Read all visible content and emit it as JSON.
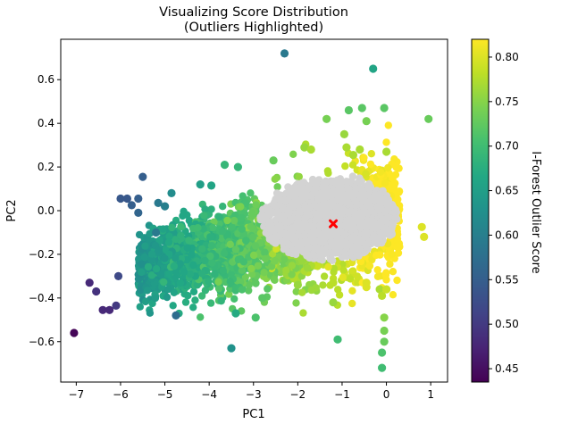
{
  "chart_data": {
    "type": "scatter",
    "title": "Visualizing Score Distribution",
    "subtitle": "(Outliers Highlighted)",
    "xlabel": "PC1",
    "ylabel": "PC2",
    "xlim": [
      -7.35,
      1.38
    ],
    "ylim": [
      -0.785,
      0.785
    ],
    "xticks": [
      -7,
      -6,
      -5,
      -4,
      -3,
      -2,
      -1,
      0,
      1
    ],
    "yticks": [
      -0.6,
      -0.4,
      -0.2,
      0.0,
      0.2,
      0.4,
      0.6
    ],
    "ytick_labels": [
      "−0.6",
      "−0.4",
      "−0.2",
      "0.0",
      "0.2",
      "0.4",
      "0.6"
    ],
    "xtick_labels": [
      "−7",
      "−6",
      "−5",
      "−4",
      "−3",
      "−2",
      "−1",
      "0",
      "1"
    ],
    "grid": false,
    "colorbar": {
      "label": "I-Forest Outlier Score",
      "range": [
        0.435,
        0.82
      ],
      "ticks": [
        0.45,
        0.5,
        0.55,
        0.6,
        0.65,
        0.7,
        0.75,
        0.8
      ],
      "tick_labels": [
        "0.45",
        "0.50",
        "0.55",
        "0.60",
        "0.65",
        "0.70",
        "0.75",
        "0.80"
      ],
      "colormap": "viridis"
    },
    "inlier_color": "#d3d3d3",
    "center_marker": {
      "x": -1.2,
      "y": -0.06,
      "color": "#ff0000",
      "shape": "x"
    },
    "highlighted_points": [
      {
        "x": -7.05,
        "y": -0.56,
        "score": 0.44
      },
      {
        "x": -6.7,
        "y": -0.33,
        "score": 0.48
      },
      {
        "x": -6.55,
        "y": -0.37,
        "score": 0.49
      },
      {
        "x": -6.4,
        "y": -0.455,
        "score": 0.48
      },
      {
        "x": -6.25,
        "y": -0.455,
        "score": 0.48
      },
      {
        "x": -6.1,
        "y": -0.435,
        "score": 0.5
      },
      {
        "x": -6.05,
        "y": -0.3,
        "score": 0.52
      },
      {
        "x": -6.0,
        "y": 0.055,
        "score": 0.54
      },
      {
        "x": -5.85,
        "y": 0.055,
        "score": 0.54
      },
      {
        "x": -5.75,
        "y": 0.025,
        "score": 0.55
      },
      {
        "x": -5.6,
        "y": 0.055,
        "score": 0.55
      },
      {
        "x": -5.6,
        "y": -0.01,
        "score": 0.56
      },
      {
        "x": -5.5,
        "y": 0.155,
        "score": 0.55
      },
      {
        "x": -5.15,
        "y": 0.035,
        "score": 0.59
      },
      {
        "x": -5.2,
        "y": -0.1,
        "score": 0.59
      },
      {
        "x": -5.0,
        "y": 0.02,
        "score": 0.6
      },
      {
        "x": -4.85,
        "y": 0.08,
        "score": 0.62
      },
      {
        "x": -4.75,
        "y": -0.48,
        "score": 0.57
      },
      {
        "x": -4.2,
        "y": 0.12,
        "score": 0.65
      },
      {
        "x": -3.95,
        "y": 0.115,
        "score": 0.66
      },
      {
        "x": -3.5,
        "y": -0.63,
        "score": 0.63
      },
      {
        "x": -3.65,
        "y": 0.21,
        "score": 0.69
      },
      {
        "x": -3.35,
        "y": 0.2,
        "score": 0.69
      },
      {
        "x": -3.4,
        "y": -0.47,
        "score": 0.67
      },
      {
        "x": -2.95,
        "y": -0.49,
        "score": 0.71
      },
      {
        "x": -2.8,
        "y": -0.4,
        "score": 0.72
      },
      {
        "x": -2.55,
        "y": 0.23,
        "score": 0.73
      },
      {
        "x": -2.3,
        "y": 0.72,
        "score": 0.59
      },
      {
        "x": -2.0,
        "y": -0.34,
        "score": 0.76
      },
      {
        "x": -1.85,
        "y": 0.29,
        "score": 0.76
      },
      {
        "x": -1.7,
        "y": 0.28,
        "score": 0.77
      },
      {
        "x": -1.35,
        "y": 0.42,
        "score": 0.74
      },
      {
        "x": -1.2,
        "y": -0.33,
        "score": 0.78
      },
      {
        "x": -1.2,
        "y": -0.42,
        "score": 0.76
      },
      {
        "x": -1.1,
        "y": -0.59,
        "score": 0.7
      },
      {
        "x": -0.95,
        "y": 0.35,
        "score": 0.76
      },
      {
        "x": -0.9,
        "y": 0.29,
        "score": 0.77
      },
      {
        "x": -0.85,
        "y": 0.46,
        "score": 0.72
      },
      {
        "x": -0.75,
        "y": 0.255,
        "score": 0.77
      },
      {
        "x": -0.6,
        "y": 0.28,
        "score": 0.77
      },
      {
        "x": -0.55,
        "y": 0.47,
        "score": 0.72
      },
      {
        "x": -0.45,
        "y": 0.41,
        "score": 0.74
      },
      {
        "x": -0.3,
        "y": 0.65,
        "score": 0.66
      },
      {
        "x": -0.05,
        "y": 0.47,
        "score": 0.72
      },
      {
        "x": 0.0,
        "y": 0.27,
        "score": 0.77
      },
      {
        "x": -0.45,
        "y": -0.33,
        "score": 0.8
      },
      {
        "x": -0.45,
        "y": -0.35,
        "score": 0.8
      },
      {
        "x": -0.15,
        "y": -0.36,
        "score": 0.77
      },
      {
        "x": -0.1,
        "y": -0.39,
        "score": 0.78
      },
      {
        "x": 0.0,
        "y": -0.36,
        "score": 0.79
      },
      {
        "x": -0.05,
        "y": -0.49,
        "score": 0.75
      },
      {
        "x": -0.05,
        "y": -0.55,
        "score": 0.74
      },
      {
        "x": -0.05,
        "y": -0.6,
        "score": 0.73
      },
      {
        "x": -0.1,
        "y": -0.65,
        "score": 0.71
      },
      {
        "x": -0.1,
        "y": -0.72,
        "score": 0.7
      },
      {
        "x": 0.95,
        "y": 0.42,
        "score": 0.73
      },
      {
        "x": 0.8,
        "y": -0.075,
        "score": 0.8
      },
      {
        "x": 0.85,
        "y": -0.12,
        "score": 0.8
      }
    ]
  }
}
